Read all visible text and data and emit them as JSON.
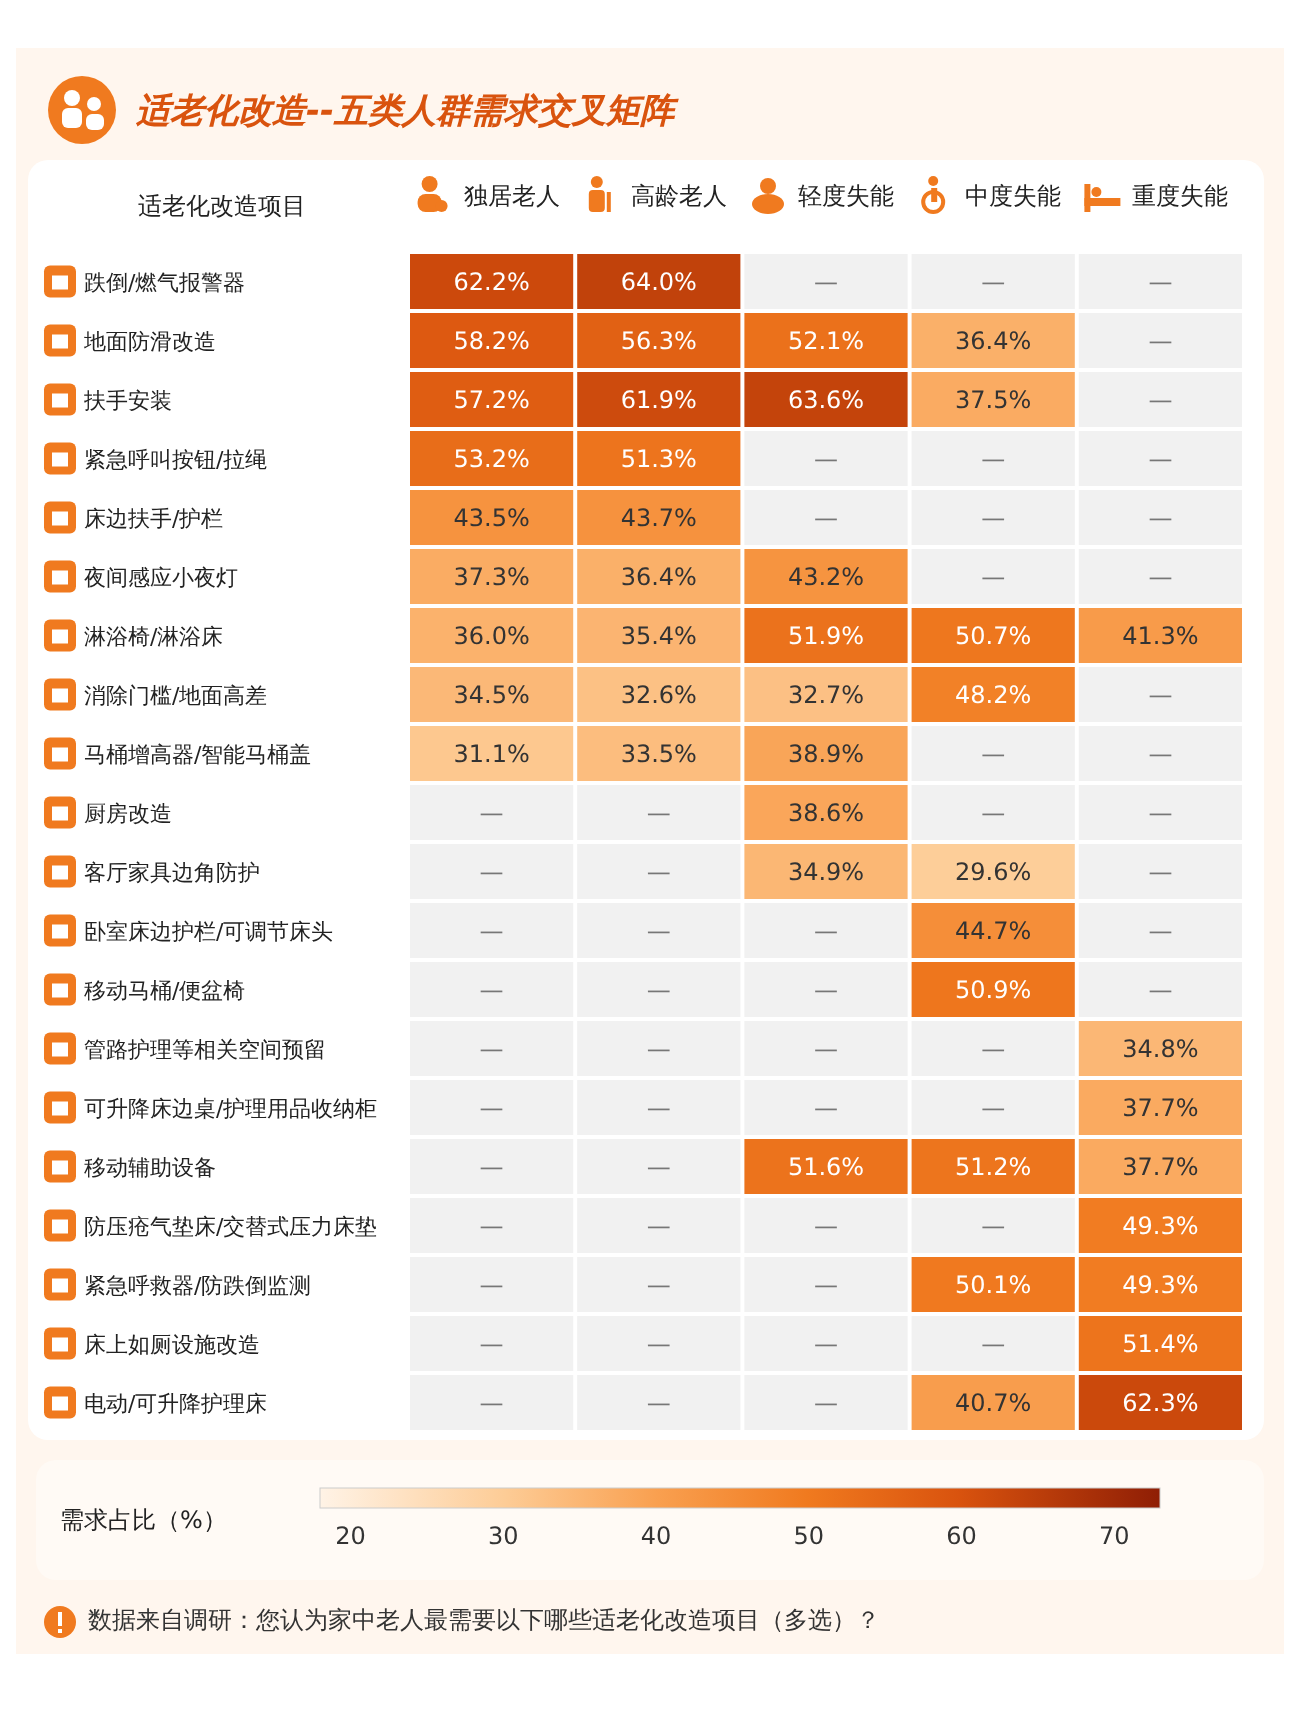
{
  "chart_data": {
    "type": "heatmap",
    "title": "适老化改造--五类人群需求交叉矩阵",
    "ylabel": "适老化改造项目",
    "clabel": "需求占比（%）",
    "categories": [
      "独居老人",
      "高龄老人",
      "轻度失能",
      "中度失能",
      "重度失能"
    ],
    "y_categories": [
      "跌倒/燃气报警器",
      "地面防滑改造",
      "扶手安装",
      "紧急呼叫按钮/拉绳",
      "床边扶手/护栏",
      "夜间感应小夜灯",
      "淋浴椅/淋浴床",
      "消除门槛/地面高差",
      "马桶增高器/智能马桶盖",
      "厨房改造",
      "客厅家具边角防护",
      "卧室床边护栏/可调节床头",
      "移动马桶/便盆椅",
      "管路护理等相关空间预留",
      "可升降床边桌/护理用品收纳柜",
      "移动辅助设备",
      "防压疮气垫床/交替式压力床垫",
      "紧急呼救器/防跌倒监测",
      "床上如厕设施改造",
      "电动/可升降护理床"
    ],
    "cells": [
      [
        62.2,
        64.0,
        null,
        null,
        null
      ],
      [
        58.2,
        56.3,
        52.1,
        36.4,
        null
      ],
      [
        57.2,
        61.9,
        63.6,
        37.5,
        null
      ],
      [
        53.2,
        51.3,
        null,
        null,
        null
      ],
      [
        43.5,
        43.7,
        null,
        null,
        null
      ],
      [
        37.3,
        36.4,
        43.2,
        null,
        null
      ],
      [
        36.0,
        35.4,
        51.9,
        50.7,
        41.3
      ],
      [
        34.5,
        32.6,
        32.7,
        48.2,
        null
      ],
      [
        31.1,
        33.5,
        38.9,
        null,
        null
      ],
      [
        null,
        null,
        38.6,
        null,
        null
      ],
      [
        null,
        null,
        34.9,
        29.6,
        null
      ],
      [
        null,
        null,
        null,
        44.7,
        null
      ],
      [
        null,
        null,
        null,
        50.9,
        null
      ],
      [
        null,
        null,
        null,
        null,
        34.8
      ],
      [
        null,
        null,
        null,
        null,
        37.7
      ],
      [
        null,
        null,
        51.6,
        51.2,
        37.7
      ],
      [
        null,
        null,
        null,
        null,
        49.3
      ],
      [
        null,
        null,
        null,
        50.1,
        49.3
      ],
      [
        null,
        null,
        null,
        null,
        51.4
      ],
      [
        null,
        null,
        null,
        40.7,
        62.3
      ]
    ],
    "cell_labels": [
      [
        "62.2%",
        "64.0%",
        "—",
        "—",
        "—"
      ],
      [
        "58.2%",
        "56.3%",
        "52.1%",
        "36.4%",
        "—"
      ],
      [
        "57.2%",
        "61.9%",
        "63.6%",
        "37.5%",
        "—"
      ],
      [
        "53.2%",
        "51.3%",
        "—",
        "—",
        "—"
      ],
      [
        "43.5%",
        "43.7%",
        "—",
        "—",
        "—"
      ],
      [
        "37.3%",
        "36.4%",
        "43.2%",
        "—",
        "—"
      ],
      [
        "36.0%",
        "35.4%",
        "51.9%",
        "50.7%",
        "41.3%"
      ],
      [
        "34.5%",
        "32.6%",
        "32.7%",
        "48.2%",
        "—"
      ],
      [
        "31.1%",
        "33.5%",
        "38.9%",
        "—",
        "—"
      ],
      [
        "—",
        "—",
        "38.6%",
        "—",
        "—"
      ],
      [
        "—",
        "—",
        "34.9%",
        "29.6%",
        "—"
      ],
      [
        "—",
        "—",
        "—",
        "44.7%",
        "—"
      ],
      [
        "—",
        "—",
        "—",
        "50.9%",
        "—"
      ],
      [
        "—",
        "—",
        "—",
        "—",
        "34.8%"
      ],
      [
        "—",
        "—",
        "—",
        "—",
        "37.7%"
      ],
      [
        "—",
        "—",
        "51.6%",
        "51.2%",
        "37.7%"
      ],
      [
        "—",
        "—",
        "—",
        "—",
        "49.3%"
      ],
      [
        "—",
        "—",
        "—",
        "50.1%",
        "49.3%"
      ],
      [
        "—",
        "—",
        "—",
        "—",
        "51.4%"
      ],
      [
        "—",
        "—",
        "—",
        "40.7%",
        "62.3%"
      ]
    ],
    "clim": [
      18,
      73
    ],
    "cticks": [
      20,
      30,
      40,
      50,
      60,
      70
    ],
    "annotations": [
      "数据来自调研：您认为家中老人最需要以下哪些适老化改造项目（多选）？"
    ]
  }
}
